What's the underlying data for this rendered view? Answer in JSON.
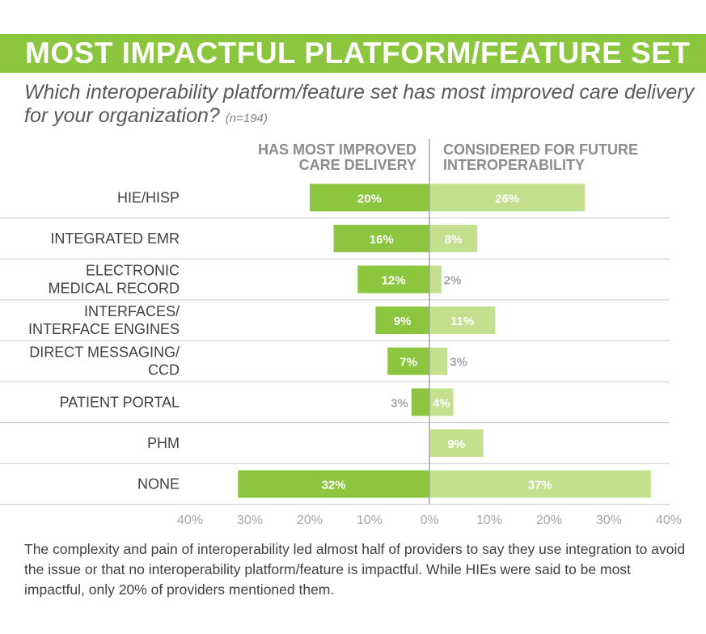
{
  "header": {
    "title": "MOST IMPACTFUL PLATFORM/FEATURE SET"
  },
  "question": {
    "text": "Which interoperability platform/feature set has most improved care delivery for your organization?",
    "sample": "(n=194)"
  },
  "columns": {
    "left": "HAS MOST IMPROVED\nCARE DELIVERY",
    "right": "CONSIDERED FOR FUTURE\nINTEROPERABILITY"
  },
  "colors": {
    "dark_green": "#8cc63f",
    "light_green": "#c2e08e",
    "label_text": "#404040",
    "grid": "#c8c8c8",
    "axis": "#a6a6a6"
  },
  "chart_data": {
    "type": "bar",
    "orientation": "diverging-horizontal",
    "categories": [
      "HIE/HISP",
      "INTEGRATED EMR",
      "ELECTRONIC\nMEDICAL RECORD",
      "INTERFACES/\nINTERFACE ENGINES",
      "DIRECT MESSAGING/\nCCD",
      "PATIENT PORTAL",
      "PHM",
      "NONE"
    ],
    "series": [
      {
        "name": "HAS MOST IMPROVED CARE DELIVERY",
        "side": "left",
        "values": [
          20,
          16,
          12,
          9,
          7,
          3,
          0,
          32
        ],
        "labels": [
          "20%",
          "16%",
          "12%",
          "9%",
          "7%",
          "3%",
          "",
          "32%"
        ]
      },
      {
        "name": "CONSIDERED FOR FUTURE INTEROPERABILITY",
        "side": "right",
        "values": [
          26,
          8,
          2,
          11,
          3,
          4,
          9,
          37
        ],
        "labels": [
          "26%",
          "8%",
          "2%",
          "11%",
          "3%",
          "4%",
          "9%",
          "37%"
        ]
      }
    ],
    "xlim": [
      -40,
      40
    ],
    "ticks": [
      -40,
      -30,
      -20,
      -10,
      0,
      10,
      20,
      30,
      40
    ],
    "tick_labels": [
      "40%",
      "30%",
      "20%",
      "10%",
      "0%",
      "10%",
      "20%",
      "30%",
      "40%"
    ]
  },
  "footer": {
    "text": "The complexity and pain of interoperability led almost half of providers to say they use integration to avoid the issue or that no interoperability platform/feature is impactful. While HIEs were said to be most impactful, only 20% of providers mentioned them."
  }
}
